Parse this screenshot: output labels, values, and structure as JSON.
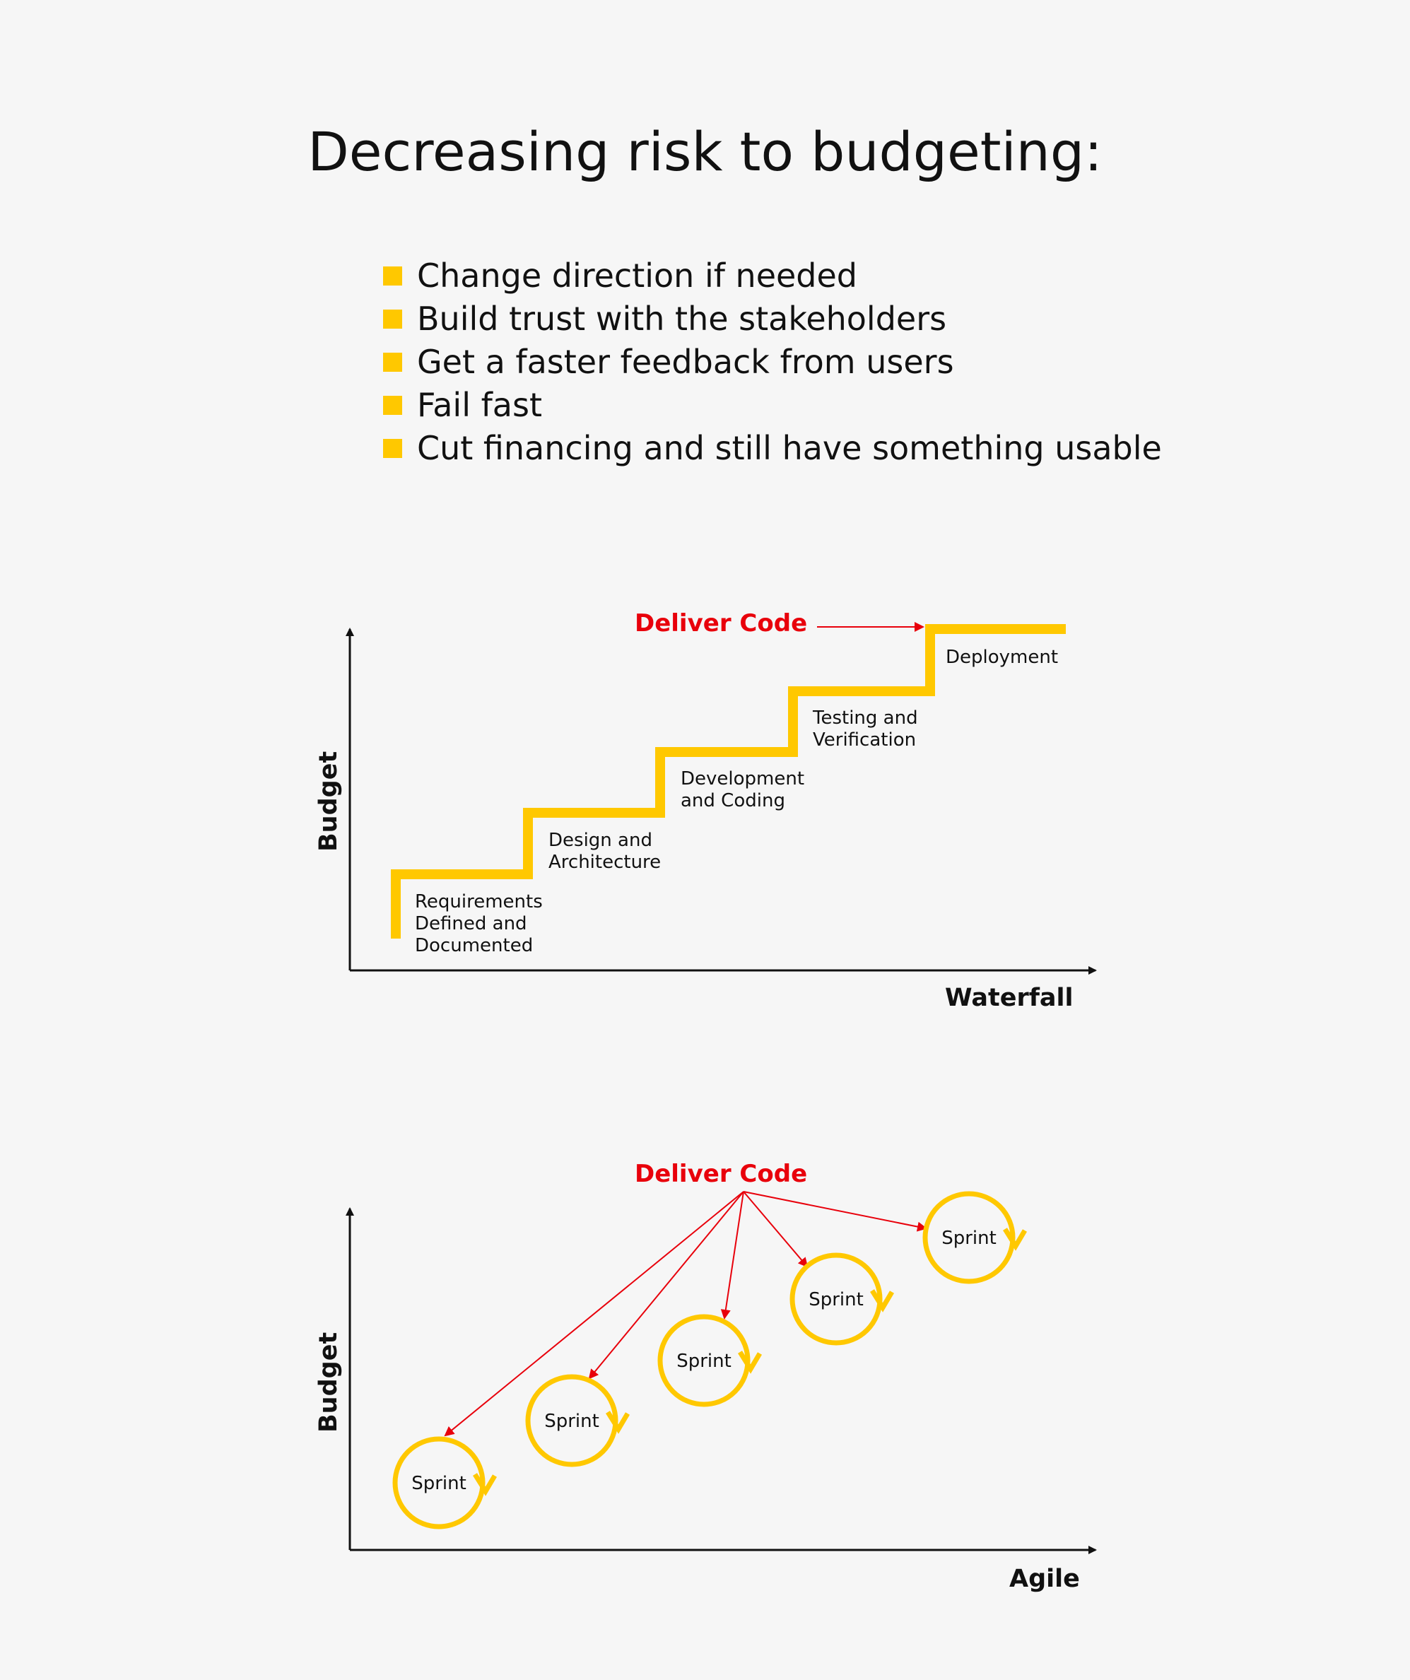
{
  "title": "Decreasing risk to budgeting:",
  "bullets": [
    "Change direction if needed",
    "Build trust with the stakeholders",
    "Get a faster feedback from users",
    "Fail fast",
    "Cut financing and still have something usable"
  ],
  "colors": {
    "accent": "#ffc800",
    "highlight": "#e8000b",
    "text": "#111111",
    "background": "#f6f6f6"
  },
  "waterfall": {
    "deliver_label": "Deliver Code",
    "x_axis_label": "Waterfall",
    "y_axis_label": "Budget",
    "steps": [
      {
        "line1": "Requirements",
        "line2": "Defined and",
        "line3": "Documented"
      },
      {
        "line1": "Design and",
        "line2": "Architecture"
      },
      {
        "line1": "Development",
        "line2": "and Coding"
      },
      {
        "line1": "Testing and",
        "line2": "Verification"
      },
      {
        "line1": "Deployment"
      }
    ]
  },
  "agile": {
    "deliver_label": "Deliver Code",
    "x_axis_label": "Agile",
    "y_axis_label": "Budget",
    "sprints": [
      "Sprint",
      "Sprint",
      "Sprint",
      "Sprint",
      "Sprint"
    ]
  }
}
